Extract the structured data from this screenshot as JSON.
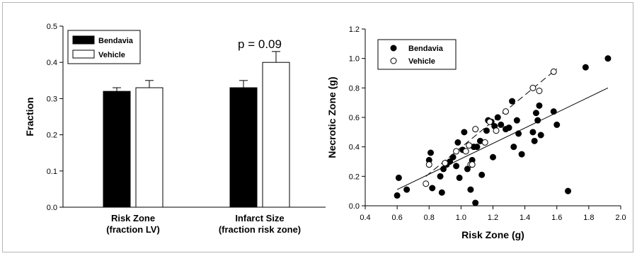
{
  "chart_data": [
    {
      "type": "bar",
      "categories": [
        [
          "Risk Zone",
          "(fraction LV)"
        ],
        [
          "Infarct Size",
          "(fraction risk zone)"
        ]
      ],
      "series": [
        {
          "name": "Bendavia",
          "color": "#000000",
          "values": [
            0.32,
            0.33
          ],
          "errors": [
            0.01,
            0.02
          ]
        },
        {
          "name": "Vehicle",
          "color": "#ffffff",
          "values": [
            0.33,
            0.4
          ],
          "errors": [
            0.02,
            0.03
          ]
        }
      ],
      "ylabel": "Fraction",
      "xlabel": "",
      "title": "",
      "ylim": [
        0,
        0.5
      ],
      "yticks": [
        "0.0",
        "0.1",
        "0.2",
        "0.3",
        "0.4",
        "0.5"
      ],
      "annotations": [
        {
          "text": "p = 0.09",
          "category": 1
        }
      ],
      "legend": "top-left"
    },
    {
      "type": "scatter",
      "xlabel": "Risk Zone (g)",
      "ylabel": "Necrotic Zone (g)",
      "title": "",
      "xlim": [
        0.4,
        2.0
      ],
      "ylim": [
        0.0,
        1.2
      ],
      "xticks": [
        "0.4",
        "0.6",
        "0.8",
        "1.0",
        "1.2",
        "1.4",
        "1.6",
        "1.8",
        "2.0"
      ],
      "yticks": [
        "0.0",
        "0.2",
        "0.4",
        "0.6",
        "0.8",
        "1.0",
        "1.2"
      ],
      "legend": "top-left",
      "series": [
        {
          "name": "Bendavia",
          "marker": "filled",
          "points": [
            [
              0.6,
              0.07
            ],
            [
              0.61,
              0.19
            ],
            [
              0.66,
              0.11
            ],
            [
              0.8,
              0.31
            ],
            [
              0.81,
              0.36
            ],
            [
              0.82,
              0.12
            ],
            [
              0.87,
              0.2
            ],
            [
              0.88,
              0.09
            ],
            [
              0.89,
              0.25
            ],
            [
              0.91,
              0.28
            ],
            [
              0.93,
              0.3
            ],
            [
              0.95,
              0.33
            ],
            [
              0.97,
              0.27
            ],
            [
              0.98,
              0.43
            ],
            [
              0.99,
              0.19
            ],
            [
              1.01,
              0.38
            ],
            [
              1.02,
              0.5
            ],
            [
              1.04,
              0.25
            ],
            [
              1.06,
              0.11
            ],
            [
              1.07,
              0.31
            ],
            [
              1.08,
              0.4
            ],
            [
              1.09,
              0.02
            ],
            [
              1.1,
              0.4
            ],
            [
              1.12,
              0.44
            ],
            [
              1.13,
              0.21
            ],
            [
              1.16,
              0.51
            ],
            [
              1.17,
              0.58
            ],
            [
              1.19,
              0.57
            ],
            [
              1.2,
              0.33
            ],
            [
              1.21,
              0.54
            ],
            [
              1.23,
              0.6
            ],
            [
              1.25,
              0.55
            ],
            [
              1.28,
              0.52
            ],
            [
              1.3,
              0.53
            ],
            [
              1.32,
              0.71
            ],
            [
              1.35,
              0.58
            ],
            [
              1.36,
              0.49
            ],
            [
              1.38,
              0.35
            ],
            [
              1.45,
              0.5
            ],
            [
              1.46,
              0.44
            ],
            [
              1.47,
              0.63
            ],
            [
              1.48,
              0.58
            ],
            [
              1.49,
              0.68
            ],
            [
              1.5,
              0.48
            ],
            [
              1.58,
              0.64
            ],
            [
              1.6,
              0.55
            ],
            [
              1.67,
              0.1
            ],
            [
              1.78,
              0.94
            ],
            [
              1.92,
              1.0
            ],
            [
              1.33,
              0.4
            ]
          ]
        },
        {
          "name": "Vehicle",
          "marker": "open",
          "points": [
            [
              0.78,
              0.15
            ],
            [
              0.8,
              0.28
            ],
            [
              0.9,
              0.29
            ],
            [
              0.97,
              0.37
            ],
            [
              1.03,
              0.37
            ],
            [
              1.05,
              0.41
            ],
            [
              1.06,
              0.28
            ],
            [
              1.07,
              0.28
            ],
            [
              1.09,
              0.52
            ],
            [
              1.15,
              0.43
            ],
            [
              1.18,
              0.57
            ],
            [
              1.22,
              0.51
            ],
            [
              1.28,
              0.64
            ],
            [
              1.45,
              0.8
            ],
            [
              1.49,
              0.78
            ],
            [
              1.58,
              0.91
            ]
          ]
        }
      ],
      "fits": [
        {
          "series": "Bendavia",
          "style": "solid",
          "x": [
            0.6,
            1.92
          ],
          "y": [
            0.11,
            0.8
          ]
        },
        {
          "series": "Vehicle",
          "style": "dashed",
          "x": [
            0.78,
            1.6
          ],
          "y": [
            0.2,
            0.93
          ]
        }
      ]
    }
  ]
}
